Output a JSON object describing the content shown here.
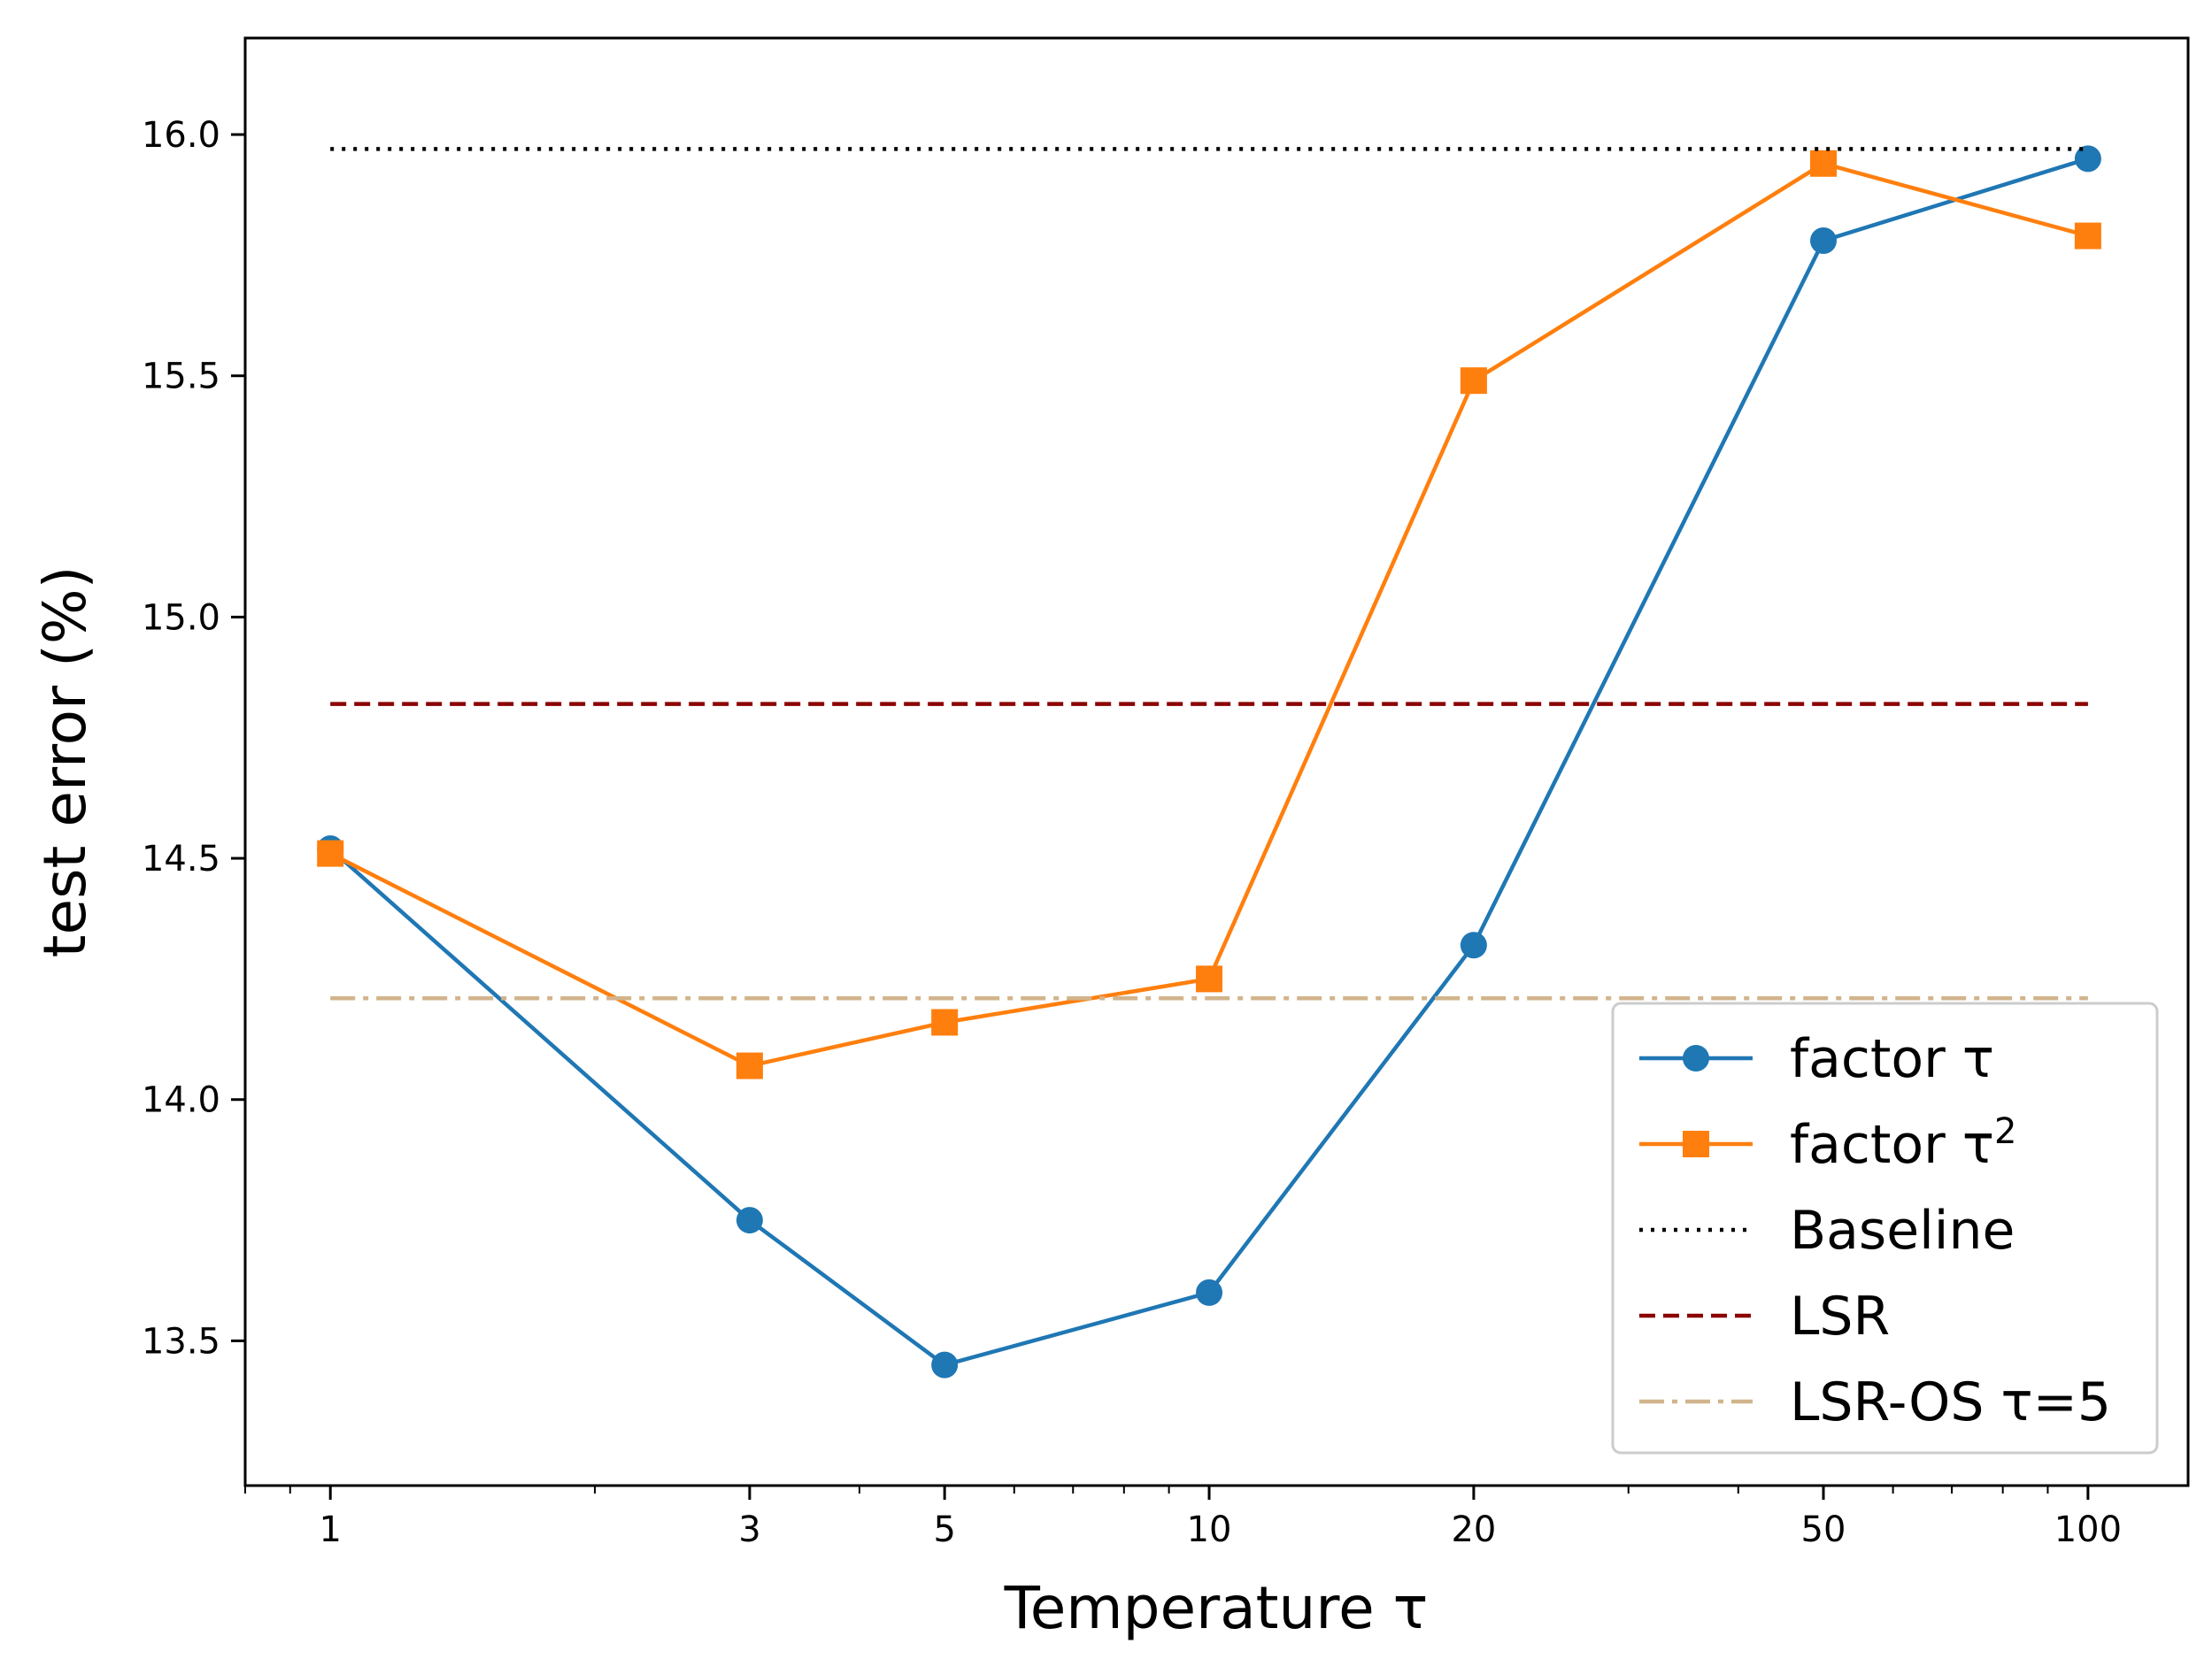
{
  "chart_data": {
    "type": "line",
    "x_scale": "log",
    "xlim": [
      0.8,
      130
    ],
    "ylim": [
      13.2,
      16.2
    ],
    "x_ticks": [
      1,
      3,
      5,
      10,
      20,
      50,
      100
    ],
    "x_tick_labels": [
      "1",
      "3",
      "5",
      "10",
      "20",
      "50",
      "100"
    ],
    "y_ticks": [
      13.5,
      14.0,
      14.5,
      15.0,
      15.5,
      16.0
    ],
    "y_tick_labels": [
      "13.5",
      "14.0",
      "14.5",
      "15.0",
      "15.5",
      "16.0"
    ],
    "xlabel": "Temperature τ",
    "ylabel": "test error (%)",
    "legend_position": "lower-right",
    "grid": false,
    "series": [
      {
        "name": "factor τ",
        "label_main": "factor τ",
        "label_sup": "",
        "color": "#1f77b4",
        "marker": "circle",
        "style": "solid",
        "x": [
          1,
          3,
          5,
          10,
          20,
          50,
          100
        ],
        "values": [
          14.52,
          13.75,
          13.45,
          13.6,
          14.32,
          15.78,
          15.95
        ]
      },
      {
        "name": "factor τ²",
        "label_main": "factor τ",
        "label_sup": "2",
        "color": "#ff7f0e",
        "marker": "square",
        "style": "solid",
        "x": [
          1,
          3,
          5,
          10,
          20,
          50,
          100
        ],
        "values": [
          14.51,
          14.07,
          14.16,
          14.25,
          15.49,
          15.94,
          15.79
        ]
      },
      {
        "name": "Baseline",
        "label_main": "Baseline",
        "label_sup": "",
        "color": "#000000",
        "marker": "none",
        "style": "dotted",
        "x": [
          1,
          100
        ],
        "values": [
          15.97,
          15.97
        ]
      },
      {
        "name": "LSR",
        "label_main": "LSR",
        "label_sup": "",
        "color": "#8b0000",
        "marker": "none",
        "style": "dashed",
        "x": [
          1,
          100
        ],
        "values": [
          14.82,
          14.82
        ]
      },
      {
        "name": "LSR-OS τ=5",
        "label_main": "LSR-OS τ=5",
        "label_sup": "",
        "color": "#d2b48c",
        "marker": "none",
        "style": "dashdot",
        "x": [
          1,
          100
        ],
        "values": [
          14.21,
          14.21
        ]
      }
    ]
  }
}
